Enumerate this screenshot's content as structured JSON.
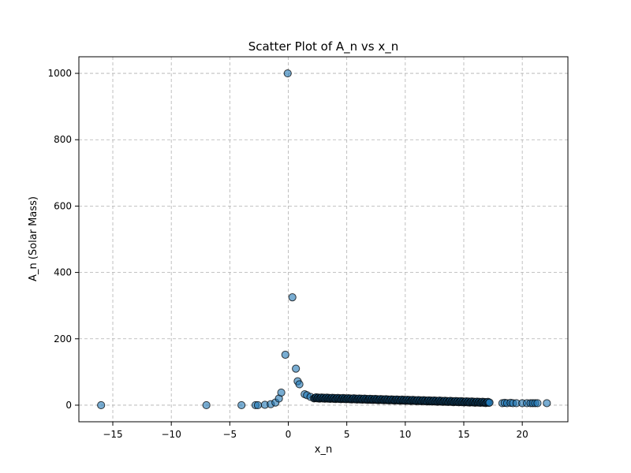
{
  "chart_data": {
    "type": "scatter",
    "title": "Scatter Plot of A_n vs x_n",
    "xlabel": "x_n",
    "ylabel": "A_n (Solar Mass)",
    "xlim": [
      -17.9,
      23.9
    ],
    "ylim": [
      -50,
      1050
    ],
    "xticks": [
      -15,
      -10,
      -5,
      0,
      5,
      10,
      15,
      20
    ],
    "yticks": [
      0,
      200,
      400,
      600,
      800,
      1000
    ],
    "grid": true,
    "marker_color": "#1f77b4",
    "marker_edge_color": "#000000",
    "marker_alpha": 0.6,
    "outliers": [
      {
        "x": -16.0,
        "y": 0
      },
      {
        "x": -7.0,
        "y": 0
      },
      {
        "x": -4.0,
        "y": 0
      },
      {
        "x": -2.8,
        "y": 0
      },
      {
        "x": -2.6,
        "y": 0
      },
      {
        "x": -2.0,
        "y": 1
      },
      {
        "x": -1.5,
        "y": 3
      },
      {
        "x": -1.1,
        "y": 8
      },
      {
        "x": -0.8,
        "y": 20
      },
      {
        "x": -0.6,
        "y": 38
      },
      {
        "x": -0.05,
        "y": 1000
      },
      {
        "x": 0.35,
        "y": 325
      },
      {
        "x": -0.25,
        "y": 152
      },
      {
        "x": 0.65,
        "y": 110
      },
      {
        "x": 0.8,
        "y": 72
      },
      {
        "x": 0.95,
        "y": 63
      },
      {
        "x": 1.4,
        "y": 33
      },
      {
        "x": 1.6,
        "y": 30
      },
      {
        "x": 1.9,
        "y": 25
      }
    ],
    "dense_series": {
      "x_start": 2.2,
      "x_end": 17.2,
      "count": 230,
      "y_at_start": 22,
      "y_at_end": 8
    },
    "tail_points": [
      {
        "x": 18.3,
        "y": 6
      },
      {
        "x": 18.5,
        "y": 7
      },
      {
        "x": 18.7,
        "y": 6
      },
      {
        "x": 19.0,
        "y": 7
      },
      {
        "x": 19.2,
        "y": 6
      },
      {
        "x": 19.5,
        "y": 6
      },
      {
        "x": 20.0,
        "y": 6
      },
      {
        "x": 20.4,
        "y": 6
      },
      {
        "x": 20.7,
        "y": 6
      },
      {
        "x": 20.9,
        "y": 6
      },
      {
        "x": 21.1,
        "y": 6
      },
      {
        "x": 21.3,
        "y": 6
      },
      {
        "x": 22.1,
        "y": 6
      }
    ]
  }
}
